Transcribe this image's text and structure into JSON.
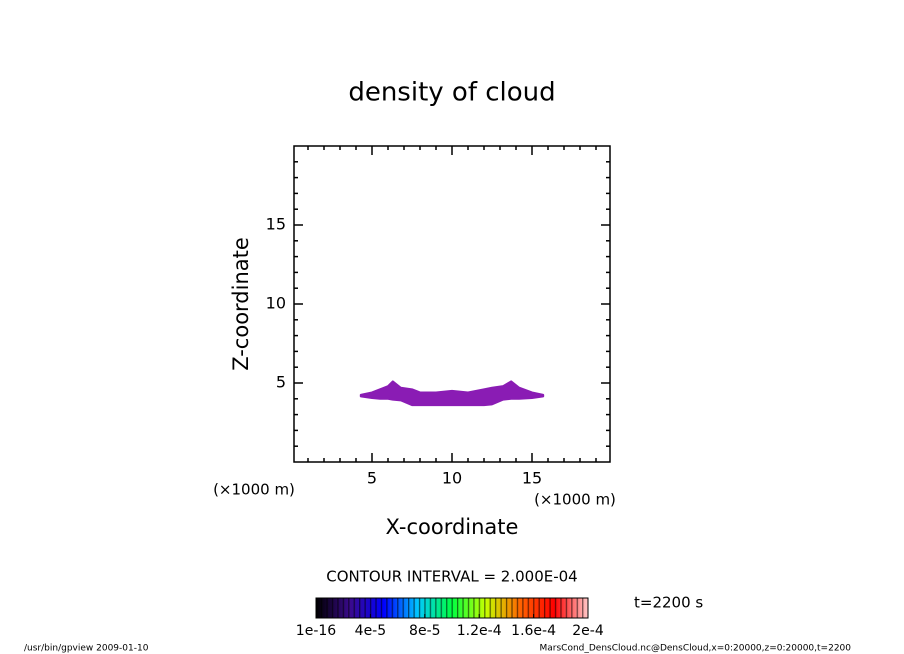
{
  "chart_data": {
    "type": "contour",
    "title": "density of cloud",
    "x_label": "X-coordinate",
    "y_label": "Z-coordinate",
    "x_units": "(×1000 m)",
    "y_units": "(×1000 m)",
    "xlim": [
      0.125,
      19.875
    ],
    "ylim": [
      0,
      20
    ],
    "xticks": [
      5,
      10,
      15
    ],
    "yticks": [
      5,
      10,
      15
    ],
    "xminorticks": [
      1,
      2,
      3,
      4,
      6,
      7,
      8,
      9,
      11,
      12,
      13,
      14,
      16,
      17,
      18,
      19
    ],
    "yminorticks": [
      1,
      2,
      3,
      4,
      6,
      7,
      8,
      9,
      11,
      12,
      13,
      14,
      16,
      17,
      18,
      19
    ],
    "series": [
      {
        "color": "#8a1cb4",
        "x": [
          4.3,
          5,
          5.5,
          6,
          6.3,
          6.8,
          7.5,
          8,
          9,
          10,
          11,
          12,
          12.5,
          13.2,
          13.7,
          14.2,
          15,
          15.7
        ],
        "top": [
          4.25,
          4.4,
          4.6,
          4.8,
          5.1,
          4.7,
          4.6,
          4.4,
          4.4,
          4.5,
          4.4,
          4.6,
          4.7,
          4.8,
          5.1,
          4.7,
          4.4,
          4.25
        ],
        "bottom": [
          4.15,
          4.05,
          4.0,
          4.0,
          3.95,
          3.9,
          3.6,
          3.6,
          3.6,
          3.6,
          3.6,
          3.6,
          3.65,
          3.95,
          4.0,
          4.0,
          4.05,
          4.15
        ]
      }
    ],
    "contour_interval": "CONTOUR INTERVAL = 2.000E-04",
    "time_label": "t=2200 s",
    "clim": [
      1e-16,
      0.0002
    ],
    "colorbar_colors": [
      "#000000",
      "#3a0a8c",
      "#0000ff",
      "#00c8ff",
      "#00ff40",
      "#c8ff00",
      "#ff6400",
      "#ff0000",
      "#ffc8c8"
    ],
    "colorbar_ticks": [
      {
        "value": 1e-16,
        "label": "1e-16"
      },
      {
        "value": 4e-05,
        "label": "4e-5"
      },
      {
        "value": 8e-05,
        "label": "8e-5"
      },
      {
        "value": 0.00012,
        "label": "1.2e-4"
      },
      {
        "value": 0.00016,
        "label": "1.6e-4"
      },
      {
        "value": 0.0002,
        "label": "2e-4"
      }
    ],
    "footer_left": "/usr/bin/gpview   2009-01-10",
    "footer_right": "MarsCond_DensCloud.nc@DensCloud,x=0:20000,z=0:20000,t=2200"
  }
}
